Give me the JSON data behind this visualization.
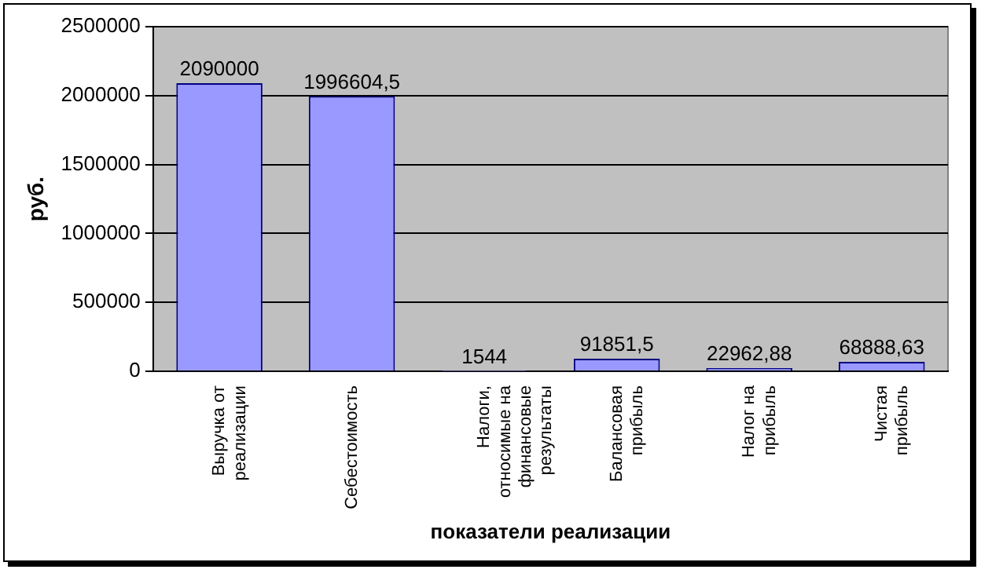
{
  "chart_data": {
    "type": "bar",
    "xlabel": "показатели реализации",
    "ylabel": "руб.",
    "categories": [
      "Выручка от реализации",
      "Себестоимость",
      "Налоги, относимые на финансовые результаты",
      "Балансовая прибыль",
      "Налог на прибыль",
      "Чистая прибыль"
    ],
    "values": [
      2090000,
      1996604.5,
      1544,
      91851.5,
      22962.88,
      68888.63
    ],
    "value_labels": [
      "2090000",
      "1996604,5",
      "1544",
      "91851,5",
      "22962,88",
      "68888,63"
    ],
    "color": "#9999ff",
    "ylim": [
      0,
      2500000
    ],
    "yticks": [
      0,
      500000,
      1000000,
      1500000,
      2000000,
      2500000
    ],
    "grid": "y",
    "legend": false
  }
}
